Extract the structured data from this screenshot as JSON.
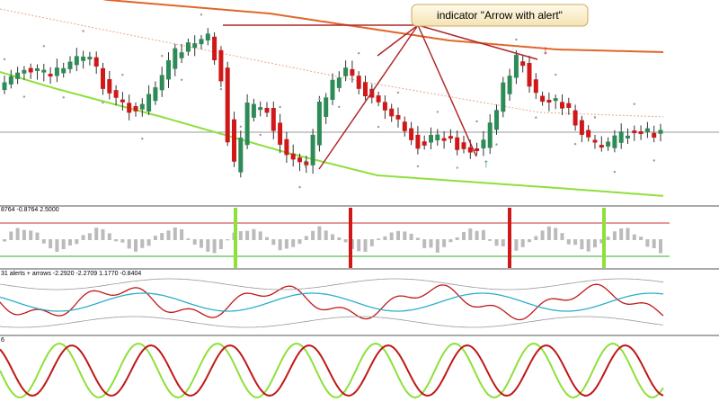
{
  "callout": {
    "text": "indicator \"Arrow with alert\""
  },
  "panels": [
    {
      "label": "8764 -0.8764 2.5000"
    },
    {
      "label": "31 alerts + arrows -2.2920 -2.2709 1.1770 -0.8404"
    },
    {
      "label": "6"
    }
  ]
}
